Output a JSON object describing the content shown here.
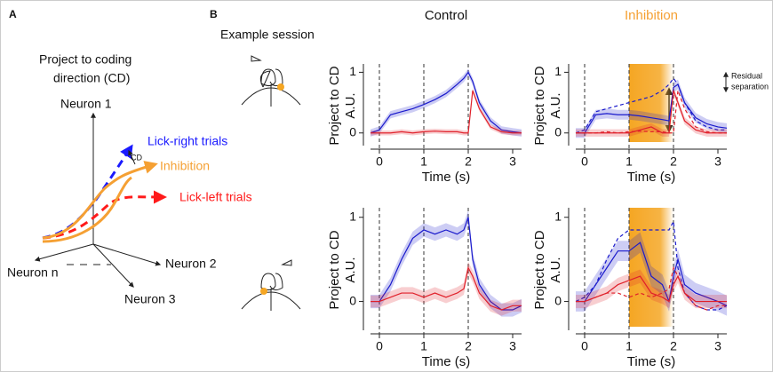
{
  "panel_a": {
    "label": "A",
    "title": [
      "Project to coding",
      "direction (CD)"
    ],
    "axes": [
      "Neuron 1",
      "Neuron 2",
      "Neuron 3",
      "Neuron n"
    ],
    "traces": [
      {
        "name": "Lick-right trials",
        "color": "#1a1aff"
      },
      {
        "name": "Inhibition",
        "color": "#f5a033"
      },
      {
        "name": "Lick-left trials",
        "color": "#ff1a1a"
      }
    ],
    "vector": "CD"
  },
  "panel_b": {
    "label": "B",
    "subtitle": "Example session",
    "annotation": [
      "Residual",
      "separation"
    ]
  },
  "chart_data": [
    {
      "type": "line",
      "title": "Control",
      "title_color": "#111",
      "x": [
        -0.2,
        0,
        0.25,
        0.5,
        0.75,
        1,
        1.25,
        1.5,
        1.75,
        1.9,
        2,
        2.1,
        2.25,
        2.5,
        2.75,
        3,
        3.2
      ],
      "xlim": [
        -0.2,
        3.2
      ],
      "xticks": [
        0,
        1,
        2,
        3
      ],
      "ylim": [
        -0.15,
        1.05
      ],
      "yticks": [
        0,
        1
      ],
      "xlabel": "Time (s)",
      "ylabel": [
        "Project to CD",
        "A.U."
      ],
      "event_lines": [
        0,
        1,
        2
      ],
      "series": [
        {
          "color": "#1a1acc",
          "dashed": false,
          "error": 0.06,
          "values": [
            0,
            0.05,
            0.3,
            0.35,
            0.4,
            0.47,
            0.55,
            0.65,
            0.8,
            0.9,
            1.0,
            0.85,
            0.5,
            0.2,
            0.05,
            0.02,
            0
          ]
        },
        {
          "color": "#e0202a",
          "dashed": false,
          "error": 0.04,
          "values": [
            0,
            0,
            0,
            0.02,
            0,
            0.02,
            0.03,
            0.02,
            0.02,
            0,
            0,
            0.7,
            0.4,
            0.1,
            0.02,
            0,
            0
          ]
        }
      ]
    },
    {
      "type": "line",
      "title": "Inhibition",
      "title_color": "#f5a033",
      "x": [
        -0.2,
        0,
        0.25,
        0.5,
        0.75,
        1,
        1.25,
        1.5,
        1.75,
        1.9,
        2,
        2.1,
        2.25,
        2.5,
        2.75,
        3,
        3.2
      ],
      "xlim": [
        -0.2,
        3.2
      ],
      "xticks": [
        0,
        1,
        2,
        3
      ],
      "ylim": [
        -0.15,
        1.05
      ],
      "yticks": [
        0,
        1
      ],
      "xlabel": "Time (s)",
      "ylabel": [
        "Project to CD",
        "A.U."
      ],
      "event_lines": [
        0,
        1,
        2
      ],
      "shaded_region": [
        1,
        2
      ],
      "shade_color": "#f5a623",
      "series": [
        {
          "color": "#1a1acc",
          "dashed": false,
          "error": 0.08,
          "values": [
            0,
            0,
            0.3,
            0.32,
            0.3,
            0.3,
            0.28,
            0.25,
            0.22,
            0.2,
            0.75,
            0.8,
            0.5,
            0.25,
            0.15,
            0.1,
            0.08
          ]
        },
        {
          "color": "#1a1acc",
          "dashed": true,
          "error": 0,
          "values": [
            0,
            0.05,
            0.35,
            0.4,
            0.45,
            0.5,
            0.55,
            0.6,
            0.7,
            0.8,
            0.9,
            0.8,
            0.5,
            0.2,
            0.1,
            0.05,
            0.05
          ]
        },
        {
          "color": "#e0202a",
          "dashed": false,
          "error": 0.06,
          "values": [
            0,
            0,
            0,
            0,
            0,
            0,
            0.05,
            0.1,
            0,
            0,
            0.7,
            0.5,
            0.2,
            0.05,
            0,
            0,
            0
          ]
        },
        {
          "color": "#e0202a",
          "dashed": true,
          "error": 0,
          "values": [
            0,
            0,
            0,
            0.02,
            0,
            0.02,
            0.03,
            0.02,
            0.02,
            0,
            0,
            0.7,
            0.4,
            0.1,
            0.02,
            0,
            0
          ]
        }
      ]
    },
    {
      "type": "line",
      "x": [
        -0.2,
        0,
        0.25,
        0.5,
        0.75,
        1,
        1.25,
        1.5,
        1.75,
        1.9,
        2,
        2.1,
        2.25,
        2.5,
        2.75,
        3,
        3.2
      ],
      "xlim": [
        -0.2,
        3.2
      ],
      "xticks": [
        0,
        1,
        2,
        3
      ],
      "ylim": [
        -0.3,
        1.05
      ],
      "yticks": [
        0,
        1
      ],
      "xlabel": "Time (s)",
      "ylabel": [
        "Project to CD",
        "A.U."
      ],
      "event_lines": [
        0,
        1,
        2
      ],
      "series": [
        {
          "color": "#1a1acc",
          "dashed": false,
          "error": 0.08,
          "values": [
            0,
            0,
            0.2,
            0.5,
            0.75,
            0.85,
            0.8,
            0.85,
            0.8,
            0.85,
            1.0,
            0.5,
            0.2,
            0,
            -0.1,
            -0.1,
            -0.05
          ]
        },
        {
          "color": "#e0202a",
          "dashed": false,
          "error": 0.07,
          "values": [
            0,
            0,
            0.05,
            0.1,
            0.1,
            0.05,
            0.1,
            0.05,
            0.1,
            0.15,
            0.4,
            0.3,
            0.1,
            -0.05,
            -0.1,
            -0.05,
            -0.05
          ]
        }
      ]
    },
    {
      "type": "line",
      "x": [
        -0.2,
        0,
        0.25,
        0.5,
        0.75,
        1,
        1.25,
        1.5,
        1.75,
        1.9,
        2,
        2.1,
        2.25,
        2.5,
        2.75,
        3,
        3.2
      ],
      "xlim": [
        -0.2,
        3.2
      ],
      "xticks": [
        0,
        1,
        2,
        3
      ],
      "ylim": [
        -0.3,
        1.05
      ],
      "yticks": [
        0,
        1
      ],
      "xlabel": "Time (s)",
      "ylabel": [
        "Project to CD",
        "A.U."
      ],
      "event_lines": [
        0,
        1,
        2
      ],
      "shaded_region": [
        1,
        2
      ],
      "shade_color": "#f5a623",
      "series": [
        {
          "color": "#1a1acc",
          "dashed": false,
          "error": 0.12,
          "values": [
            0,
            0,
            0.2,
            0.4,
            0.6,
            0.6,
            0.7,
            0.3,
            0.2,
            0,
            0.3,
            0.5,
            0.2,
            0.1,
            0.05,
            0,
            -0.05
          ]
        },
        {
          "color": "#1a1acc",
          "dashed": true,
          "error": 0,
          "values": [
            0,
            0.05,
            0.2,
            0.5,
            0.75,
            0.85,
            0.85,
            0.85,
            0.85,
            0.85,
            0.95,
            0.4,
            0.1,
            -0.05,
            -0.1,
            -0.1,
            -0.05
          ]
        },
        {
          "color": "#e0202a",
          "dashed": false,
          "error": 0.08,
          "values": [
            0,
            0,
            0.05,
            0.1,
            0.2,
            0.25,
            0.3,
            0.1,
            0.05,
            0,
            0.2,
            0.3,
            0.1,
            0,
            0,
            0,
            0
          ]
        },
        {
          "color": "#e0202a",
          "dashed": true,
          "error": 0,
          "values": [
            0,
            0,
            0.05,
            0.1,
            0.1,
            0.05,
            0.1,
            0.05,
            0.1,
            0.15,
            0.4,
            0.3,
            0.1,
            -0.05,
            -0.1,
            -0.05,
            -0.05
          ]
        }
      ]
    }
  ]
}
